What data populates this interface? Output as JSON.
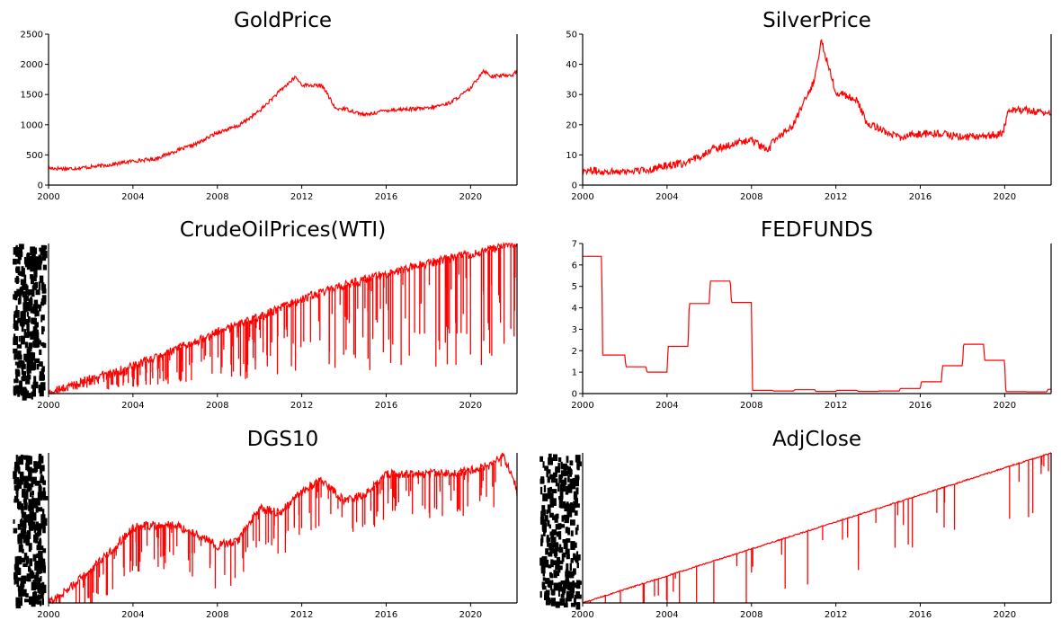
{
  "colors": {
    "series": "#ff0000",
    "axis": "#000000"
  },
  "chart_data": [
    {
      "type": "line",
      "title": "GoldPrice",
      "xlabel": "",
      "ylabel": "",
      "xlim": [
        2000,
        2022.2
      ],
      "ylim": [
        0,
        2500
      ],
      "xticks": [
        2000,
        2004,
        2008,
        2012,
        2016,
        2020
      ],
      "yticks": [
        0,
        500,
        1000,
        1500,
        2000,
        2500
      ],
      "grid": false,
      "series": [
        {
          "x": [
            2000,
            2001,
            2002,
            2003,
            2004,
            2005,
            2006,
            2007,
            2008,
            2009,
            2010,
            2011,
            2011.7,
            2012,
            2013,
            2013.6,
            2014,
            2015,
            2016,
            2017,
            2018,
            2019,
            2019.6,
            2020,
            2020.6,
            2021,
            2022,
            2022.2
          ],
          "y": [
            280,
            272,
            300,
            340,
            400,
            430,
            560,
            680,
            870,
            980,
            1230,
            1570,
            1790,
            1660,
            1640,
            1260,
            1270,
            1160,
            1240,
            1260,
            1270,
            1360,
            1500,
            1600,
            1900,
            1800,
            1830,
            1880
          ]
        }
      ]
    },
    {
      "type": "line",
      "title": "SilverPrice",
      "xlabel": "",
      "ylabel": "",
      "xlim": [
        2000,
        2022.2
      ],
      "ylim": [
        0,
        50
      ],
      "xticks": [
        2000,
        2004,
        2008,
        2012,
        2016,
        2020
      ],
      "yticks": [
        0,
        10,
        20,
        30,
        40,
        50
      ],
      "grid": false,
      "series": [
        {
          "x": [
            2000,
            2001,
            2002,
            2003,
            2004,
            2005,
            2006,
            2007,
            2008,
            2008.8,
            2009,
            2010,
            2011,
            2011.3,
            2012,
            2013,
            2013.5,
            2014,
            2015,
            2016,
            2017,
            2018,
            2019,
            2019.9,
            2020.2,
            2021,
            2022,
            2022.2
          ],
          "y": [
            5,
            4.5,
            4.6,
            4.9,
            6.6,
            7.3,
            11.5,
            13.4,
            15,
            11,
            14.5,
            20,
            35,
            48,
            31,
            28,
            20,
            19,
            15.8,
            17,
            17,
            15.8,
            16.2,
            17,
            25,
            25,
            23.5,
            24.5
          ]
        }
      ]
    },
    {
      "type": "line",
      "title": "CrudeOilPrices(WTI)",
      "xlabel": "",
      "ylabel": "",
      "xlim": [
        2000,
        2022.2
      ],
      "ylim": [
        0,
        100
      ],
      "xticks": [
        2000,
        2004,
        2008,
        2012,
        2016,
        2020
      ],
      "grid": false,
      "series": [
        {
          "x": [
            2000,
            2002,
            2004,
            2006,
            2008,
            2009,
            2010,
            2012,
            2014,
            2016,
            2018,
            2020,
            2022,
            2022.2
          ],
          "y": [
            0,
            10,
            18,
            29,
            41,
            46,
            51,
            63,
            72,
            80,
            87,
            93,
            99,
            100
          ]
        }
      ]
    },
    {
      "type": "line",
      "title": "FEDFUNDS",
      "xlabel": "",
      "ylabel": "",
      "xlim": [
        2000,
        2022.2
      ],
      "ylim": [
        0,
        7
      ],
      "xticks": [
        2000,
        2004,
        2008,
        2012,
        2016,
        2020
      ],
      "yticks": [
        0,
        1,
        2,
        3,
        4,
        5,
        6,
        7
      ],
      "grid": false,
      "series": [
        {
          "x": [
            2000,
            2000.9,
            2000.95,
            2002,
            2002.05,
            2003,
            2003.05,
            2004,
            2004.05,
            2005,
            2005.05,
            2006,
            2006.05,
            2007,
            2007.05,
            2008,
            2008.05,
            2009,
            2009.05,
            2010,
            2010.05,
            2011,
            2011.05,
            2012,
            2012.05,
            2013,
            2013.05,
            2014,
            2014.05,
            2015,
            2015.05,
            2016,
            2016.05,
            2017,
            2017.05,
            2018,
            2018.05,
            2019,
            2019.05,
            2020,
            2020.05,
            2021,
            2021.05,
            2022,
            2022.05,
            2022.2
          ],
          "y": [
            6.4,
            6.4,
            1.8,
            1.8,
            1.25,
            1.25,
            1.0,
            1.0,
            2.2,
            2.2,
            4.2,
            4.2,
            5.25,
            5.25,
            4.25,
            4.25,
            0.15,
            0.15,
            0.12,
            0.12,
            0.18,
            0.18,
            0.1,
            0.1,
            0.15,
            0.15,
            0.1,
            0.1,
            0.12,
            0.12,
            0.24,
            0.24,
            0.55,
            0.55,
            1.3,
            1.3,
            2.3,
            2.3,
            1.55,
            1.55,
            0.09,
            0.09,
            0.08,
            0.08,
            0.2,
            0.2
          ]
        }
      ]
    },
    {
      "type": "line",
      "title": "DGS10",
      "xlabel": "",
      "ylabel": "",
      "xlim": [
        2000,
        2022.2
      ],
      "ylim": [
        0,
        100
      ],
      "xticks": [
        2000,
        2004,
        2008,
        2012,
        2016,
        2020
      ],
      "grid": false,
      "series": [
        {
          "x": [
            2000,
            2001,
            2002,
            2003,
            2004,
            2005,
            2006,
            2007,
            2008,
            2009,
            2010,
            2011,
            2012,
            2013,
            2014,
            2015,
            2016,
            2017,
            2018,
            2019,
            2020,
            2021,
            2021.5,
            2022,
            2022.2
          ],
          "y": [
            0,
            10,
            22,
            35,
            50,
            52,
            52,
            46,
            38,
            42,
            63,
            60,
            75,
            82,
            68,
            72,
            86,
            86,
            86,
            86,
            88,
            92,
            98,
            84,
            74
          ]
        }
      ]
    },
    {
      "type": "line",
      "title": "AdjClose",
      "xlabel": "",
      "ylabel": "",
      "xlim": [
        2000,
        2022.2
      ],
      "ylim": [
        0,
        100
      ],
      "xticks": [
        2000,
        2004,
        2008,
        2012,
        2016,
        2020
      ],
      "grid": false,
      "series": [
        {
          "x": [
            2000,
            2004,
            2008,
            2012,
            2016,
            2020,
            2022.2
          ],
          "y": [
            0,
            18,
            36,
            54,
            72,
            90,
            100
          ]
        }
      ]
    }
  ]
}
